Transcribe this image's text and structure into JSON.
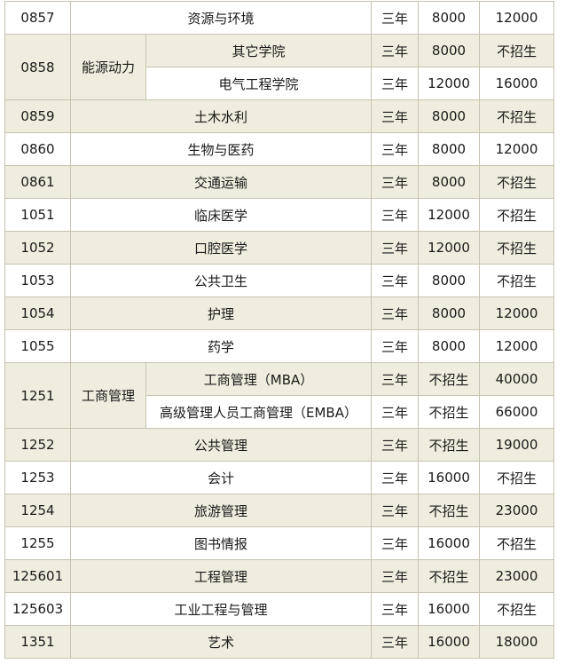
{
  "rows": [
    {
      "code": "0857",
      "name": "资源与环境",
      "years": "三年",
      "full_time": "8000",
      "part_time": "12000"
    },
    {
      "code": "0858",
      "group": "能源动力",
      "subs": [
        {
          "name": "其它学院",
          "years": "三年",
          "full_time": "8000",
          "part_time": "不招生"
        },
        {
          "name": "电气工程学院",
          "years": "三年",
          "full_time": "12000",
          "part_time": "16000"
        }
      ]
    },
    {
      "code": "0859",
      "name": "土木水利",
      "years": "三年",
      "full_time": "8000",
      "part_time": "不招生"
    },
    {
      "code": "0860",
      "name": "生物与医药",
      "years": "三年",
      "full_time": "8000",
      "part_time": "12000"
    },
    {
      "code": "0861",
      "name": "交通运输",
      "years": "三年",
      "full_time": "8000",
      "part_time": "不招生"
    },
    {
      "code": "1051",
      "name": "临床医学",
      "years": "三年",
      "full_time": "12000",
      "part_time": "不招生"
    },
    {
      "code": "1052",
      "name": "口腔医学",
      "years": "三年",
      "full_time": "12000",
      "part_time": "不招生"
    },
    {
      "code": "1053",
      "name": "公共卫生",
      "years": "三年",
      "full_time": "8000",
      "part_time": "不招生"
    },
    {
      "code": "1054",
      "name": "护理",
      "years": "三年",
      "full_time": "8000",
      "part_time": "12000"
    },
    {
      "code": "1055",
      "name": "药学",
      "years": "三年",
      "full_time": "8000",
      "part_time": "12000"
    },
    {
      "code": "1251",
      "group": "工商管理",
      "subs": [
        {
          "name": "工商管理（MBA）",
          "years": "三年",
          "full_time": "不招生",
          "part_time": "40000"
        },
        {
          "name": "高级管理人员工商管理（EMBA）",
          "years": "三年",
          "full_time": "不招生",
          "part_time": "66000"
        }
      ]
    },
    {
      "code": "1252",
      "name": "公共管理",
      "years": "三年",
      "full_time": "不招生",
      "part_time": "19000"
    },
    {
      "code": "1253",
      "name": "会计",
      "years": "三年",
      "full_time": "16000",
      "part_time": "不招生"
    },
    {
      "code": "1254",
      "name": "旅游管理",
      "years": "三年",
      "full_time": "不招生",
      "part_time": "23000"
    },
    {
      "code": "1255",
      "name": "图书情报",
      "years": "三年",
      "full_time": "16000",
      "part_time": "不招生"
    },
    {
      "code": "125601",
      "name": "工程管理",
      "years": "三年",
      "full_time": "不招生",
      "part_time": "23000"
    },
    {
      "code": "125603",
      "name": "工业工程与管理",
      "years": "三年",
      "full_time": "16000",
      "part_time": "不招生"
    },
    {
      "code": "1351",
      "name": "艺术",
      "years": "三年",
      "full_time": "16000",
      "part_time": "18000"
    }
  ],
  "colors": {
    "shade": "#efedde",
    "plain": "#ffffff",
    "border": "#c8c3b0",
    "text": "#1a1a1a"
  }
}
